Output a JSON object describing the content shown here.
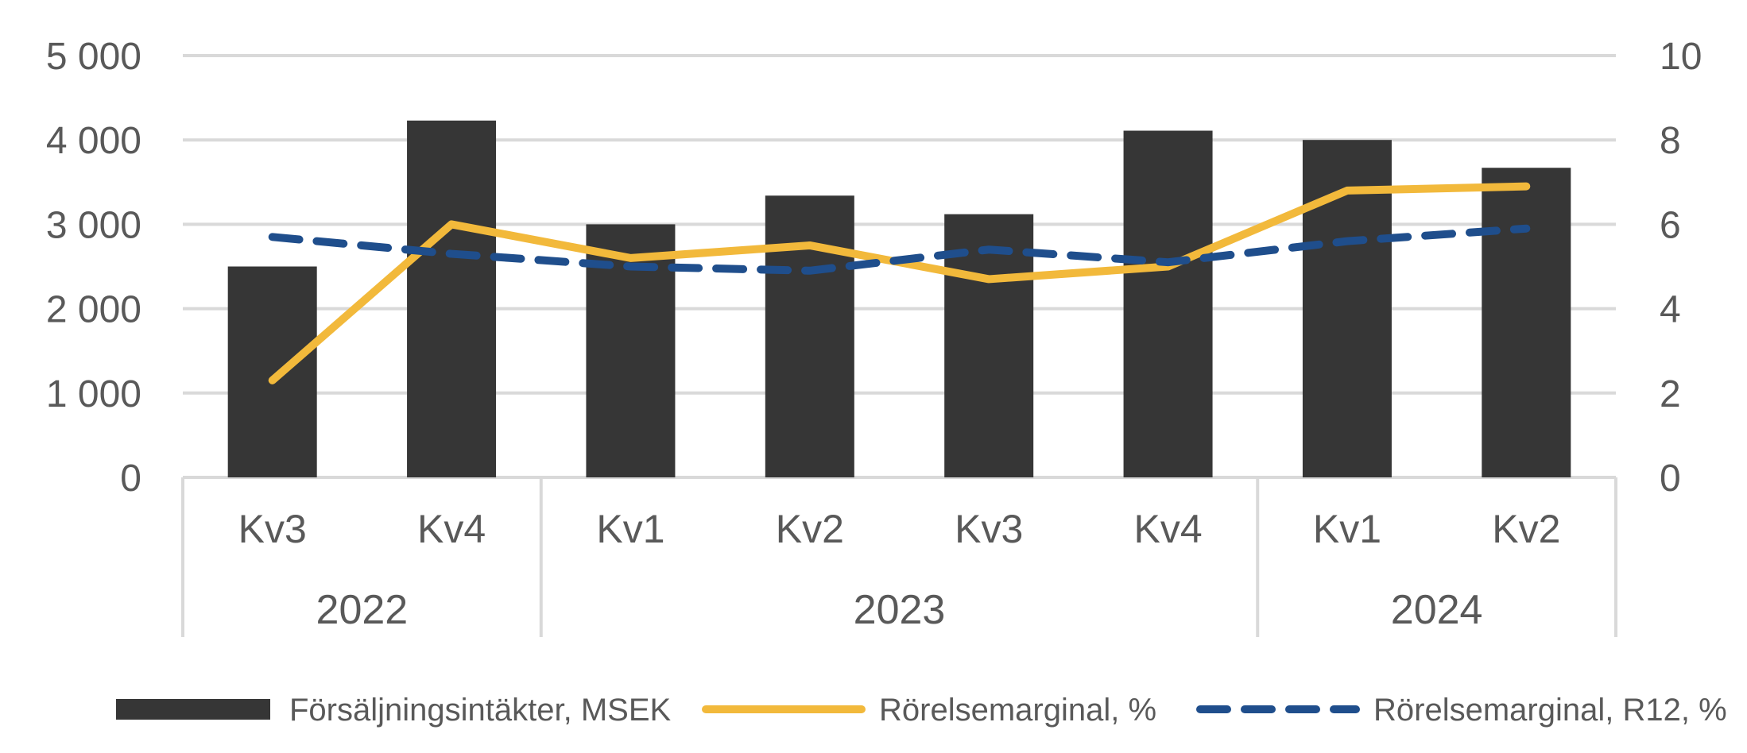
{
  "chart_data": {
    "type": "bar",
    "categories": [
      "Kv3",
      "Kv4",
      "Kv1",
      "Kv2",
      "Kv3",
      "Kv4",
      "Kv1",
      "Kv2"
    ],
    "groups": [
      {
        "label": "2022",
        "count": 2
      },
      {
        "label": "2023",
        "count": 4
      },
      {
        "label": "2024",
        "count": 2
      }
    ],
    "series": [
      {
        "name": "Försäljningsintäkter, MSEK",
        "type": "bar",
        "axis": "left",
        "color": "#363636",
        "values": [
          2500,
          4230,
          3000,
          3340,
          3120,
          4110,
          4000,
          3670
        ]
      },
      {
        "name": "Rörelsemarginal, %",
        "type": "line",
        "axis": "right",
        "color": "#F2B93B",
        "dash": "solid",
        "values": [
          2.3,
          6.0,
          5.2,
          5.5,
          4.7,
          5.0,
          6.8,
          6.9
        ]
      },
      {
        "name": "Rörelsemarginal, R12, %",
        "type": "line",
        "axis": "right",
        "color": "#1F4E8C",
        "dash": "dashed",
        "values": [
          5.7,
          5.3,
          5.0,
          4.9,
          5.4,
          5.1,
          5.6,
          5.9
        ]
      }
    ],
    "left_axis": {
      "min": 0,
      "max": 5000,
      "step": 1000,
      "tick_labels": [
        "0",
        "1 000",
        "2 000",
        "3 000",
        "4 000",
        "5 000"
      ]
    },
    "right_axis": {
      "min": 0,
      "max": 10,
      "step": 2,
      "tick_labels": [
        "0",
        "2",
        "4",
        "6",
        "8",
        "10"
      ]
    },
    "grid": true,
    "legend_position": "bottom"
  }
}
